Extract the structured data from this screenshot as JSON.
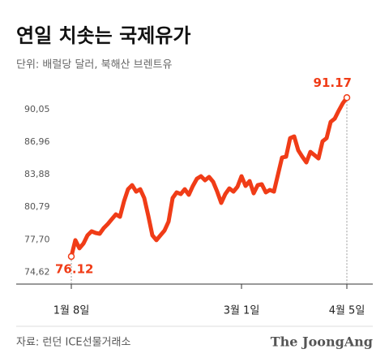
{
  "chart_data": {
    "type": "line",
    "title": "연일 치솟는 국제유가",
    "subtitle": "단위: 배럴당 달러, 북해산 브렌트유",
    "source": "자료: 런던 ICE선물거래소",
    "brand": "The JoongAng",
    "categories": [
      "1월 8일",
      null,
      null,
      null,
      null,
      null,
      null,
      null,
      null,
      null,
      null,
      null,
      null,
      null,
      null,
      null,
      null,
      null,
      null,
      null,
      null,
      null,
      null,
      null,
      null,
      null,
      null,
      null,
      null,
      null,
      null,
      null,
      null,
      null,
      null,
      null,
      null,
      null,
      null,
      null,
      null,
      null,
      "3월 1일",
      null,
      null,
      null,
      null,
      null,
      null,
      null,
      null,
      null,
      null,
      null,
      null,
      null,
      null,
      null,
      null,
      null,
      null,
      null,
      null,
      null,
      null,
      null,
      null,
      null,
      "4월 5일"
    ],
    "series": [
      {
        "color": "#f03c17",
        "values": [
          76.12,
          77.66,
          76.89,
          77.35,
          78.12,
          78.5,
          78.35,
          78.27,
          78.81,
          79.19,
          79.65,
          80.11,
          79.88,
          81.34,
          82.49,
          82.88,
          82.26,
          82.49,
          81.65,
          79.96,
          78.12,
          77.66,
          78.12,
          78.58,
          79.42,
          81.65,
          82.19,
          82.03,
          82.49,
          81.96,
          82.8,
          83.49,
          83.72,
          83.34,
          83.65,
          83.19,
          82.26,
          81.19,
          82.03,
          82.57,
          82.26,
          82.72,
          83.72,
          82.8,
          83.26,
          82.11,
          82.88,
          82.96,
          82.19,
          82.42,
          82.26,
          83.88,
          85.49,
          85.57,
          87.33,
          87.49,
          86.18,
          85.57,
          85.03,
          86.03,
          85.72,
          85.41,
          87.03,
          87.33,
          88.87,
          89.18,
          89.94,
          90.64,
          91.17
        ]
      }
    ],
    "ylim": [
      73.5,
      92.5
    ],
    "yticks": [
      {
        "value": 74.62,
        "label": "74,62"
      },
      {
        "value": 77.7,
        "label": "77,70"
      },
      {
        "value": 80.79,
        "label": "80,79"
      },
      {
        "value": 83.88,
        "label": "83,88"
      },
      {
        "value": 86.96,
        "label": "86,96"
      },
      {
        "value": 90.05,
        "label": "90,05"
      }
    ],
    "grid": false
  }
}
